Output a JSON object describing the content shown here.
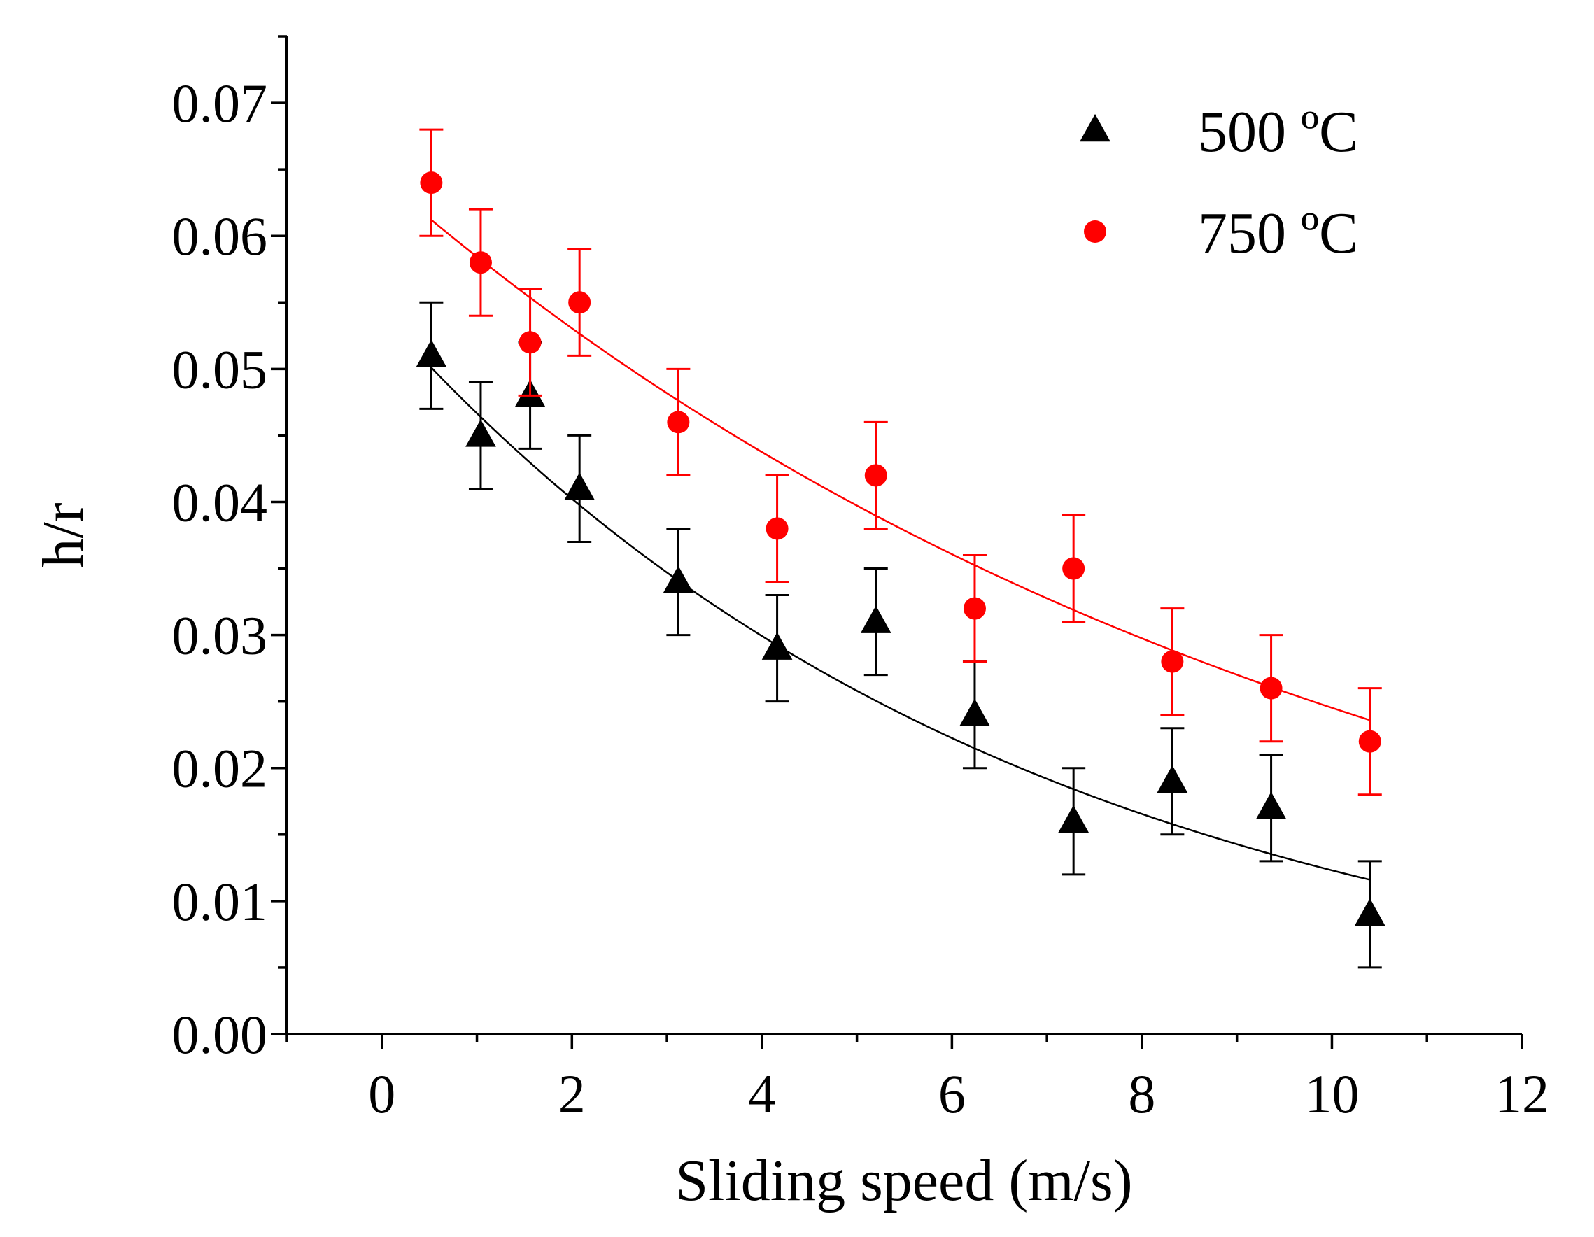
{
  "chart_data": {
    "type": "scatter",
    "title": "",
    "xlabel": "Sliding speed (m/s)",
    "ylabel": "h/r",
    "xlim": [
      -1,
      12
    ],
    "ylim": [
      0,
      0.075
    ],
    "x_ticks": [
      0,
      2,
      4,
      6,
      8,
      10,
      12
    ],
    "x_tick_labels": [
      "0",
      "2",
      "4",
      "6",
      "8",
      "10",
      "12"
    ],
    "y_ticks": [
      0,
      0.01,
      0.02,
      0.03,
      0.04,
      0.05,
      0.06,
      0.07
    ],
    "y_tick_labels": [
      "0.00",
      "0.01",
      "0.02",
      "0.03",
      "0.04",
      "0.05",
      "0.06",
      "0.07"
    ],
    "legend_position": "top-right",
    "series": [
      {
        "name": "500 ºC",
        "marker": "triangle",
        "color": "#000000",
        "x": [
          0.52,
          1.04,
          1.56,
          2.08,
          3.12,
          4.16,
          5.2,
          6.24,
          7.28,
          8.32,
          9.36,
          10.4
        ],
        "y": [
          0.051,
          0.045,
          0.048,
          0.041,
          0.034,
          0.029,
          0.031,
          0.024,
          0.016,
          0.019,
          0.017,
          0.009
        ],
        "error": [
          0.004,
          0.004,
          0.004,
          0.004,
          0.004,
          0.004,
          0.004,
          0.004,
          0.004,
          0.004,
          0.004,
          0.004
        ],
        "fit": {
          "type": "exponential",
          "x_start": 0.52,
          "x_end": 10.4,
          "y_start": 0.0501,
          "y_end": 0.0116
        }
      },
      {
        "name": "750 ºC",
        "marker": "circle",
        "color": "#ff0000",
        "x": [
          0.52,
          1.04,
          1.56,
          2.08,
          3.12,
          4.16,
          5.2,
          6.24,
          7.28,
          8.32,
          9.36,
          10.4
        ],
        "y": [
          0.064,
          0.058,
          0.052,
          0.055,
          0.046,
          0.038,
          0.042,
          0.032,
          0.035,
          0.028,
          0.026,
          0.022
        ],
        "error": [
          0.004,
          0.004,
          0.004,
          0.004,
          0.004,
          0.004,
          0.004,
          0.004,
          0.004,
          0.004,
          0.004,
          0.004
        ],
        "fit": {
          "type": "exponential",
          "x_start": 0.52,
          "x_end": 10.4,
          "y_start": 0.0612,
          "y_end": 0.0236
        }
      }
    ]
  }
}
